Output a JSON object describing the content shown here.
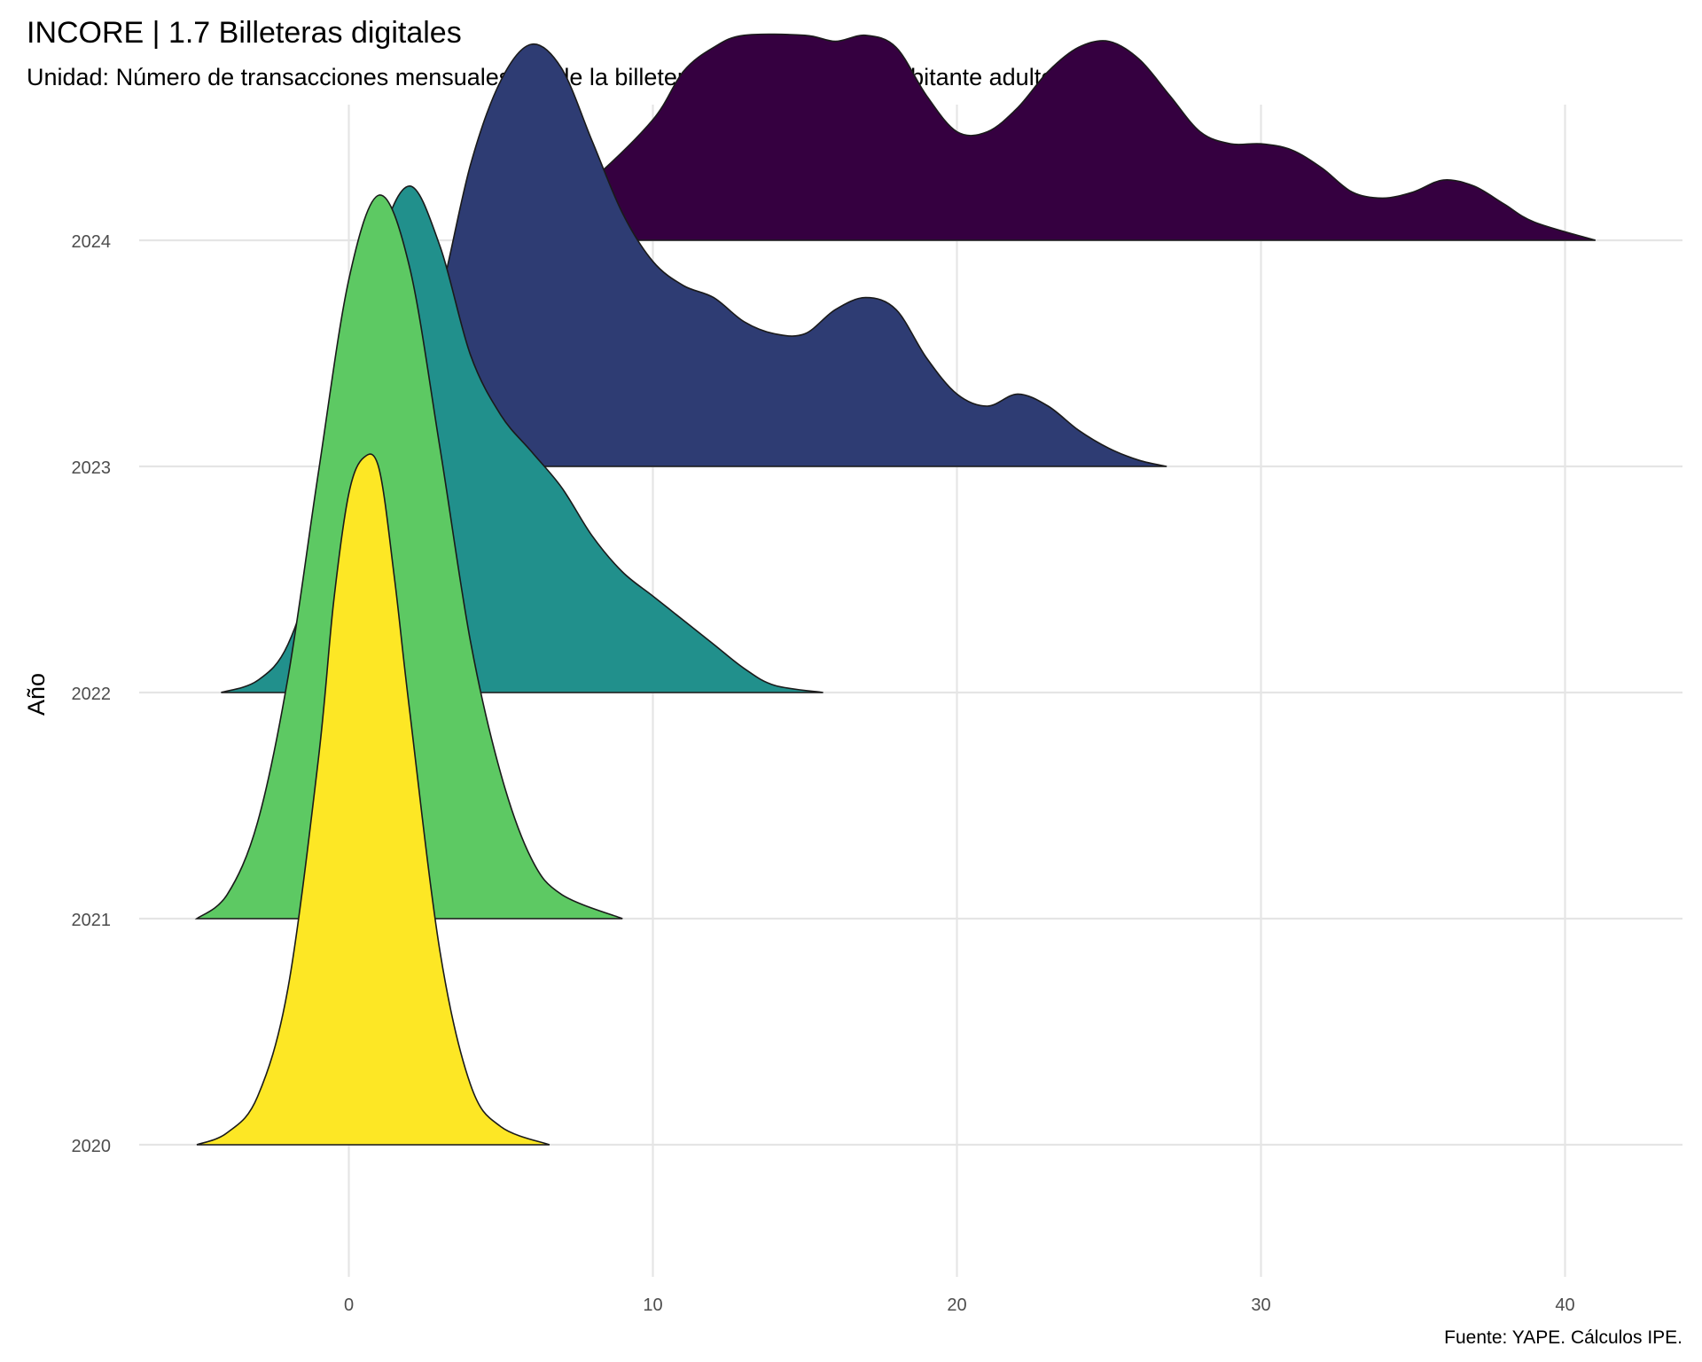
{
  "chart_data": {
    "type": "ridgeline",
    "title": "INCORE | 1.7 Billeteras digitales",
    "subtitle": "Unidad: Número de transacciones mensuales desde la billetera digital YAPE por habitante adulto",
    "ylabel": "Año",
    "xlabel": "",
    "caption": "Fuente: YAPE. Cálculos IPE.",
    "xlim": [
      -7,
      44
    ],
    "x_ticks": [
      0,
      10,
      20,
      30,
      40
    ],
    "categories": [
      "2020",
      "2021",
      "2022",
      "2023",
      "2024"
    ],
    "grid": true,
    "legend": "none",
    "series": [
      {
        "name": "2020",
        "color": "#FDE725",
        "points": [
          [
            -5,
            0
          ],
          [
            -4,
            0.01
          ],
          [
            -3,
            0.04
          ],
          [
            -2,
            0.13
          ],
          [
            -1,
            0.32
          ],
          [
            -0.5,
            0.45
          ],
          [
            0,
            0.54
          ],
          [
            0.5,
            0.57
          ],
          [
            1,
            0.56
          ],
          [
            1.5,
            0.47
          ],
          [
            2,
            0.36
          ],
          [
            3,
            0.16
          ],
          [
            4,
            0.05
          ],
          [
            5,
            0.015
          ],
          [
            6.6,
            0
          ]
        ]
      },
      {
        "name": "2021",
        "color": "#5DC963",
        "points": [
          [
            -5,
            0
          ],
          [
            -4,
            0.02
          ],
          [
            -3,
            0.08
          ],
          [
            -2,
            0.2
          ],
          [
            -1,
            0.37
          ],
          [
            0,
            0.53
          ],
          [
            1,
            0.6
          ],
          [
            2,
            0.54
          ],
          [
            3,
            0.39
          ],
          [
            4,
            0.23
          ],
          [
            5,
            0.12
          ],
          [
            6,
            0.05
          ],
          [
            7,
            0.02
          ],
          [
            9,
            0
          ]
        ]
      },
      {
        "name": "2022",
        "color": "#21908C",
        "points": [
          [
            -4.2,
            0
          ],
          [
            -3,
            0.01
          ],
          [
            -2,
            0.04
          ],
          [
            -1,
            0.12
          ],
          [
            0,
            0.25
          ],
          [
            1,
            0.37
          ],
          [
            2,
            0.42
          ],
          [
            3,
            0.37
          ],
          [
            4,
            0.28
          ],
          [
            5,
            0.23
          ],
          [
            6,
            0.2
          ],
          [
            7,
            0.17
          ],
          [
            8,
            0.13
          ],
          [
            9,
            0.1
          ],
          [
            10,
            0.08
          ],
          [
            11,
            0.06
          ],
          [
            12,
            0.04
          ],
          [
            13,
            0.02
          ],
          [
            14,
            0.006
          ],
          [
            15.6,
            0
          ]
        ]
      },
      {
        "name": "2023",
        "color": "#2E3C73",
        "points": [
          [
            -0.8,
            0
          ],
          [
            1,
            0.02
          ],
          [
            2,
            0.06
          ],
          [
            3,
            0.14
          ],
          [
            4,
            0.25
          ],
          [
            5,
            0.32
          ],
          [
            6,
            0.35
          ],
          [
            7,
            0.33
          ],
          [
            8,
            0.27
          ],
          [
            9,
            0.21
          ],
          [
            10,
            0.17
          ],
          [
            11,
            0.15
          ],
          [
            12,
            0.14
          ],
          [
            13,
            0.12
          ],
          [
            14,
            0.11
          ],
          [
            15,
            0.11
          ],
          [
            16,
            0.13
          ],
          [
            17,
            0.14
          ],
          [
            18,
            0.13
          ],
          [
            19,
            0.09
          ],
          [
            20,
            0.06
          ],
          [
            21,
            0.05
          ],
          [
            22,
            0.06
          ],
          [
            23,
            0.05
          ],
          [
            24,
            0.03
          ],
          [
            25,
            0.015
          ],
          [
            26,
            0.005
          ],
          [
            26.9,
            0
          ]
        ]
      },
      {
        "name": "2024",
        "color": "#350040",
        "points": [
          [
            4.3,
            0
          ],
          [
            6,
            0.01
          ],
          [
            8,
            0.05
          ],
          [
            10,
            0.1
          ],
          [
            11,
            0.14
          ],
          [
            12,
            0.16
          ],
          [
            13,
            0.17
          ],
          [
            15,
            0.17
          ],
          [
            16,
            0.165
          ],
          [
            17,
            0.17
          ],
          [
            18,
            0.16
          ],
          [
            19,
            0.12
          ],
          [
            20,
            0.09
          ],
          [
            21,
            0.09
          ],
          [
            22,
            0.11
          ],
          [
            23,
            0.14
          ],
          [
            24,
            0.16
          ],
          [
            25,
            0.165
          ],
          [
            26,
            0.15
          ],
          [
            27,
            0.12
          ],
          [
            28,
            0.09
          ],
          [
            29,
            0.08
          ],
          [
            30,
            0.08
          ],
          [
            31,
            0.075
          ],
          [
            32,
            0.06
          ],
          [
            33,
            0.04
          ],
          [
            34,
            0.035
          ],
          [
            35,
            0.04
          ],
          [
            36,
            0.05
          ],
          [
            37,
            0.045
          ],
          [
            38,
            0.03
          ],
          [
            39,
            0.015
          ],
          [
            41,
            0
          ]
        ]
      }
    ]
  }
}
